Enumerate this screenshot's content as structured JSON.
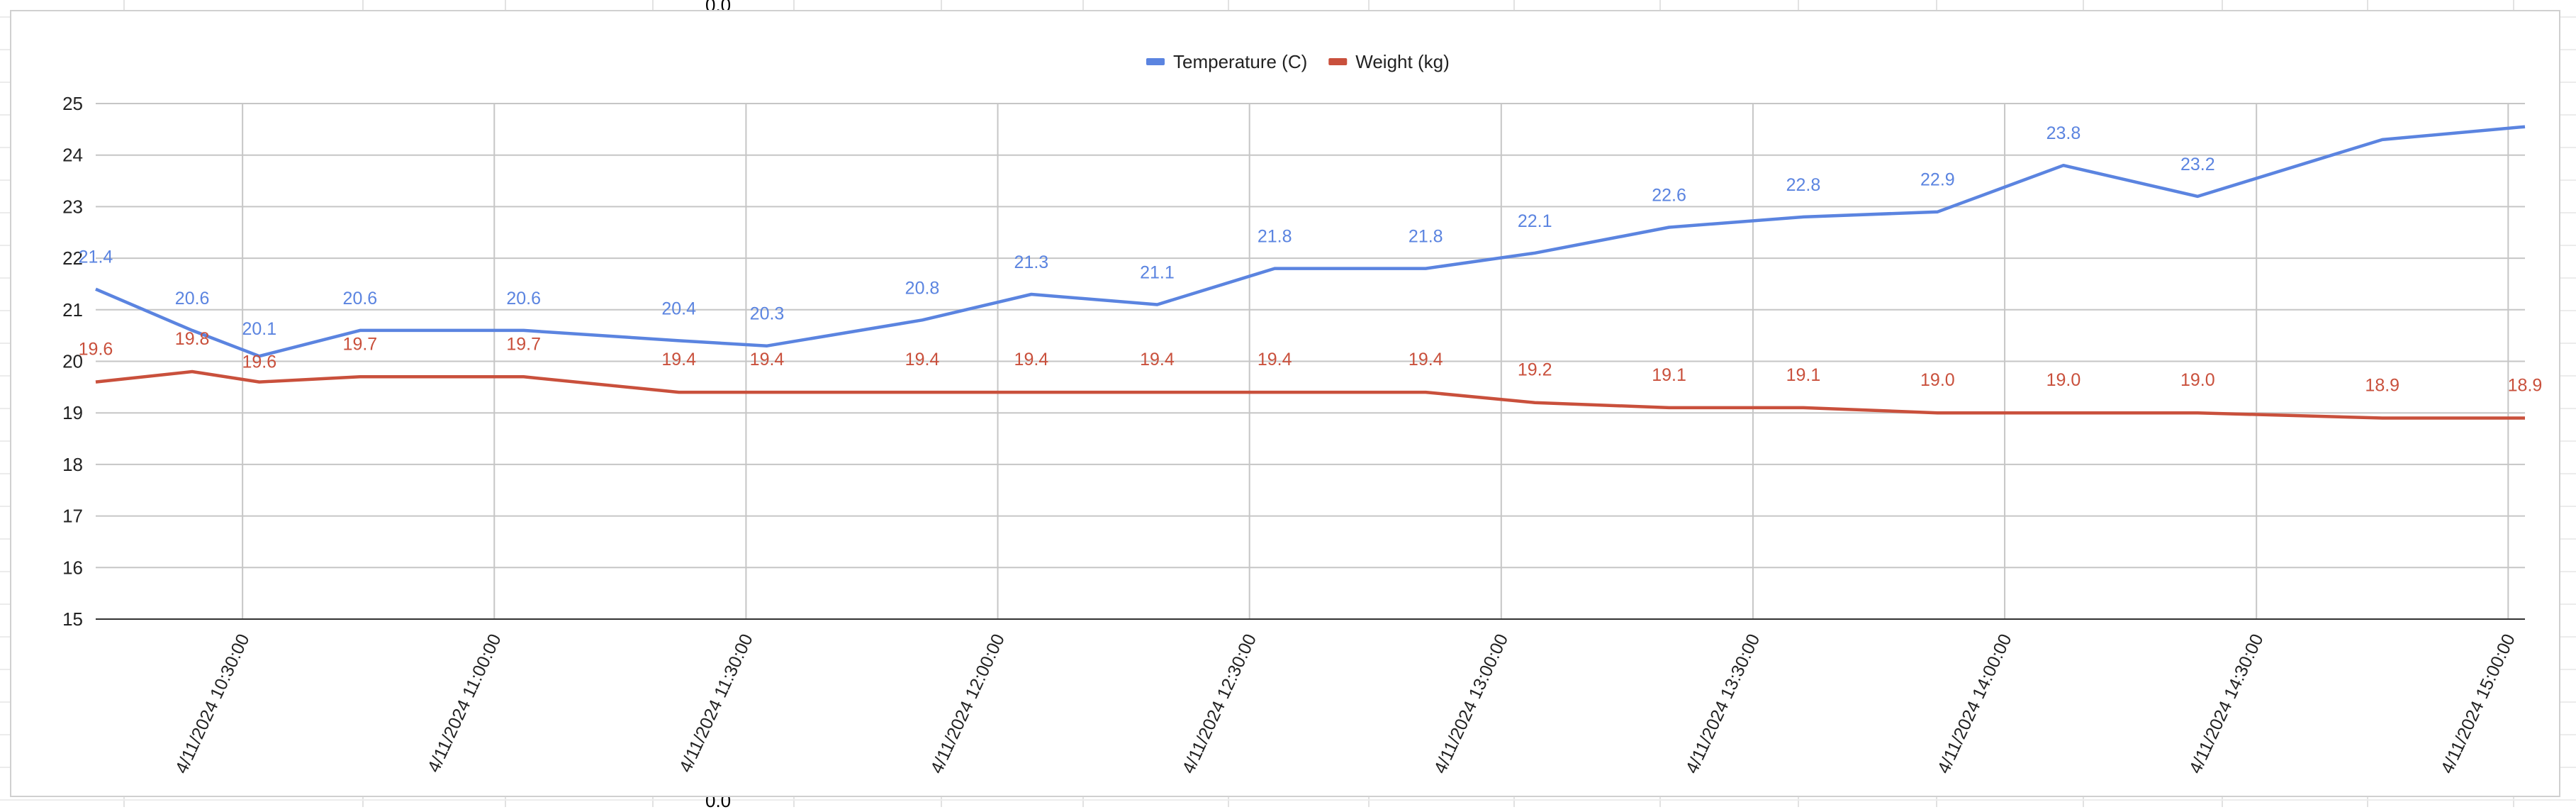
{
  "sheet_artifacts": {
    "top_value": "0.0",
    "bottom_value": "0.0"
  },
  "chart_data": {
    "type": "line",
    "title": "",
    "xlabel": "",
    "ylabel": "",
    "ylim": [
      15,
      25
    ],
    "yticks": [
      "15",
      "16",
      "17",
      "18",
      "19",
      "20",
      "21",
      "22",
      "23",
      "24",
      "25"
    ],
    "x_range": [
      "4/11/2024 10:12:30",
      "4/11/2024 15:02:00"
    ],
    "xticks": [
      "4/11/2024 10:30:00",
      "4/11/2024 11:00:00",
      "4/11/2024 11:30:00",
      "4/11/2024 12:00:00",
      "4/11/2024 12:30:00",
      "4/11/2024 13:00:00",
      "4/11/2024 13:30:00",
      "4/11/2024 14:00:00",
      "4/11/2024 14:30:00",
      "4/11/2024 15:00:00"
    ],
    "grid": true,
    "legend_position": "top",
    "x": [
      "4/11/2024 10:12:30",
      "4/11/2024 10:31:00",
      "4/11/2024 10:48:00",
      "4/11/2024 11:06:30",
      "4/11/2024 11:24:00",
      "4/11/2024 11:40:00",
      "4/11/2024 11:58:00",
      "4/11/2024 12:15:00",
      "4/11/2024 12:33:30",
      "4/11/2024 12:51:00",
      "4/11/2024 13:08:00",
      "4/11/2024 13:25:30",
      "4/11/2024 13:43:00",
      "4/11/2024 14:00:30",
      "4/11/2024 14:18:00",
      "4/11/2024 14:36:00",
      "4/11/2024 14:53:30"
    ],
    "series": [
      {
        "name": "Temperature (C)",
        "color": "#5b84e0",
        "values": [
          21.4,
          20.6,
          20.1,
          20.6,
          20.6,
          20.4,
          20.3,
          20.8,
          21.3,
          21.1,
          21.8,
          21.8,
          22.1,
          22.6,
          22.8,
          22.9,
          23.8,
          23.2
        ],
        "x": [
          "4/11/2024 10:12:30",
          "4/11/2024 10:24:00",
          "4/11/2024 10:32:00",
          "4/11/2024 10:44:00",
          "4/11/2024 11:03:30",
          "4/11/2024 11:22:00",
          "4/11/2024 11:32:30",
          "4/11/2024 11:51:00",
          "4/11/2024 12:04:00",
          "4/11/2024 12:19:00",
          "4/11/2024 12:33:00",
          "4/11/2024 12:51:00",
          "4/11/2024 13:04:00",
          "4/11/2024 13:20:00",
          "4/11/2024 13:36:00",
          "4/11/2024 13:52:00",
          "4/11/2024 14:07:00",
          "4/11/2024 14:23:00"
        ],
        "tail": {
          "x": [
            "4/11/2024 14:45:00",
            "4/11/2024 15:02:00"
          ],
          "values": [
            24.3,
            24.55
          ]
        }
      },
      {
        "name": "Weight (kg)",
        "color": "#c9503c",
        "values": [
          19.6,
          19.8,
          19.6,
          19.7,
          19.7,
          19.4,
          19.4,
          19.4,
          19.4,
          19.4,
          19.4,
          19.4,
          19.2,
          19.1,
          19.1,
          19.0,
          19.0,
          19.0,
          18.9,
          18.9
        ],
        "x": [
          "4/11/2024 10:12:30",
          "4/11/2024 10:24:00",
          "4/11/2024 10:32:00",
          "4/11/2024 10:44:00",
          "4/11/2024 11:03:30",
          "4/11/2024 11:22:00",
          "4/11/2024 11:32:30",
          "4/11/2024 11:51:00",
          "4/11/2024 12:04:00",
          "4/11/2024 12:19:00",
          "4/11/2024 12:33:00",
          "4/11/2024 12:51:00",
          "4/11/2024 13:04:00",
          "4/11/2024 13:20:00",
          "4/11/2024 13:36:00",
          "4/11/2024 13:52:00",
          "4/11/2024 14:07:00",
          "4/11/2024 14:23:00",
          "4/11/2024 14:45:00",
          "4/11/2024 15:02:00"
        ]
      }
    ]
  }
}
